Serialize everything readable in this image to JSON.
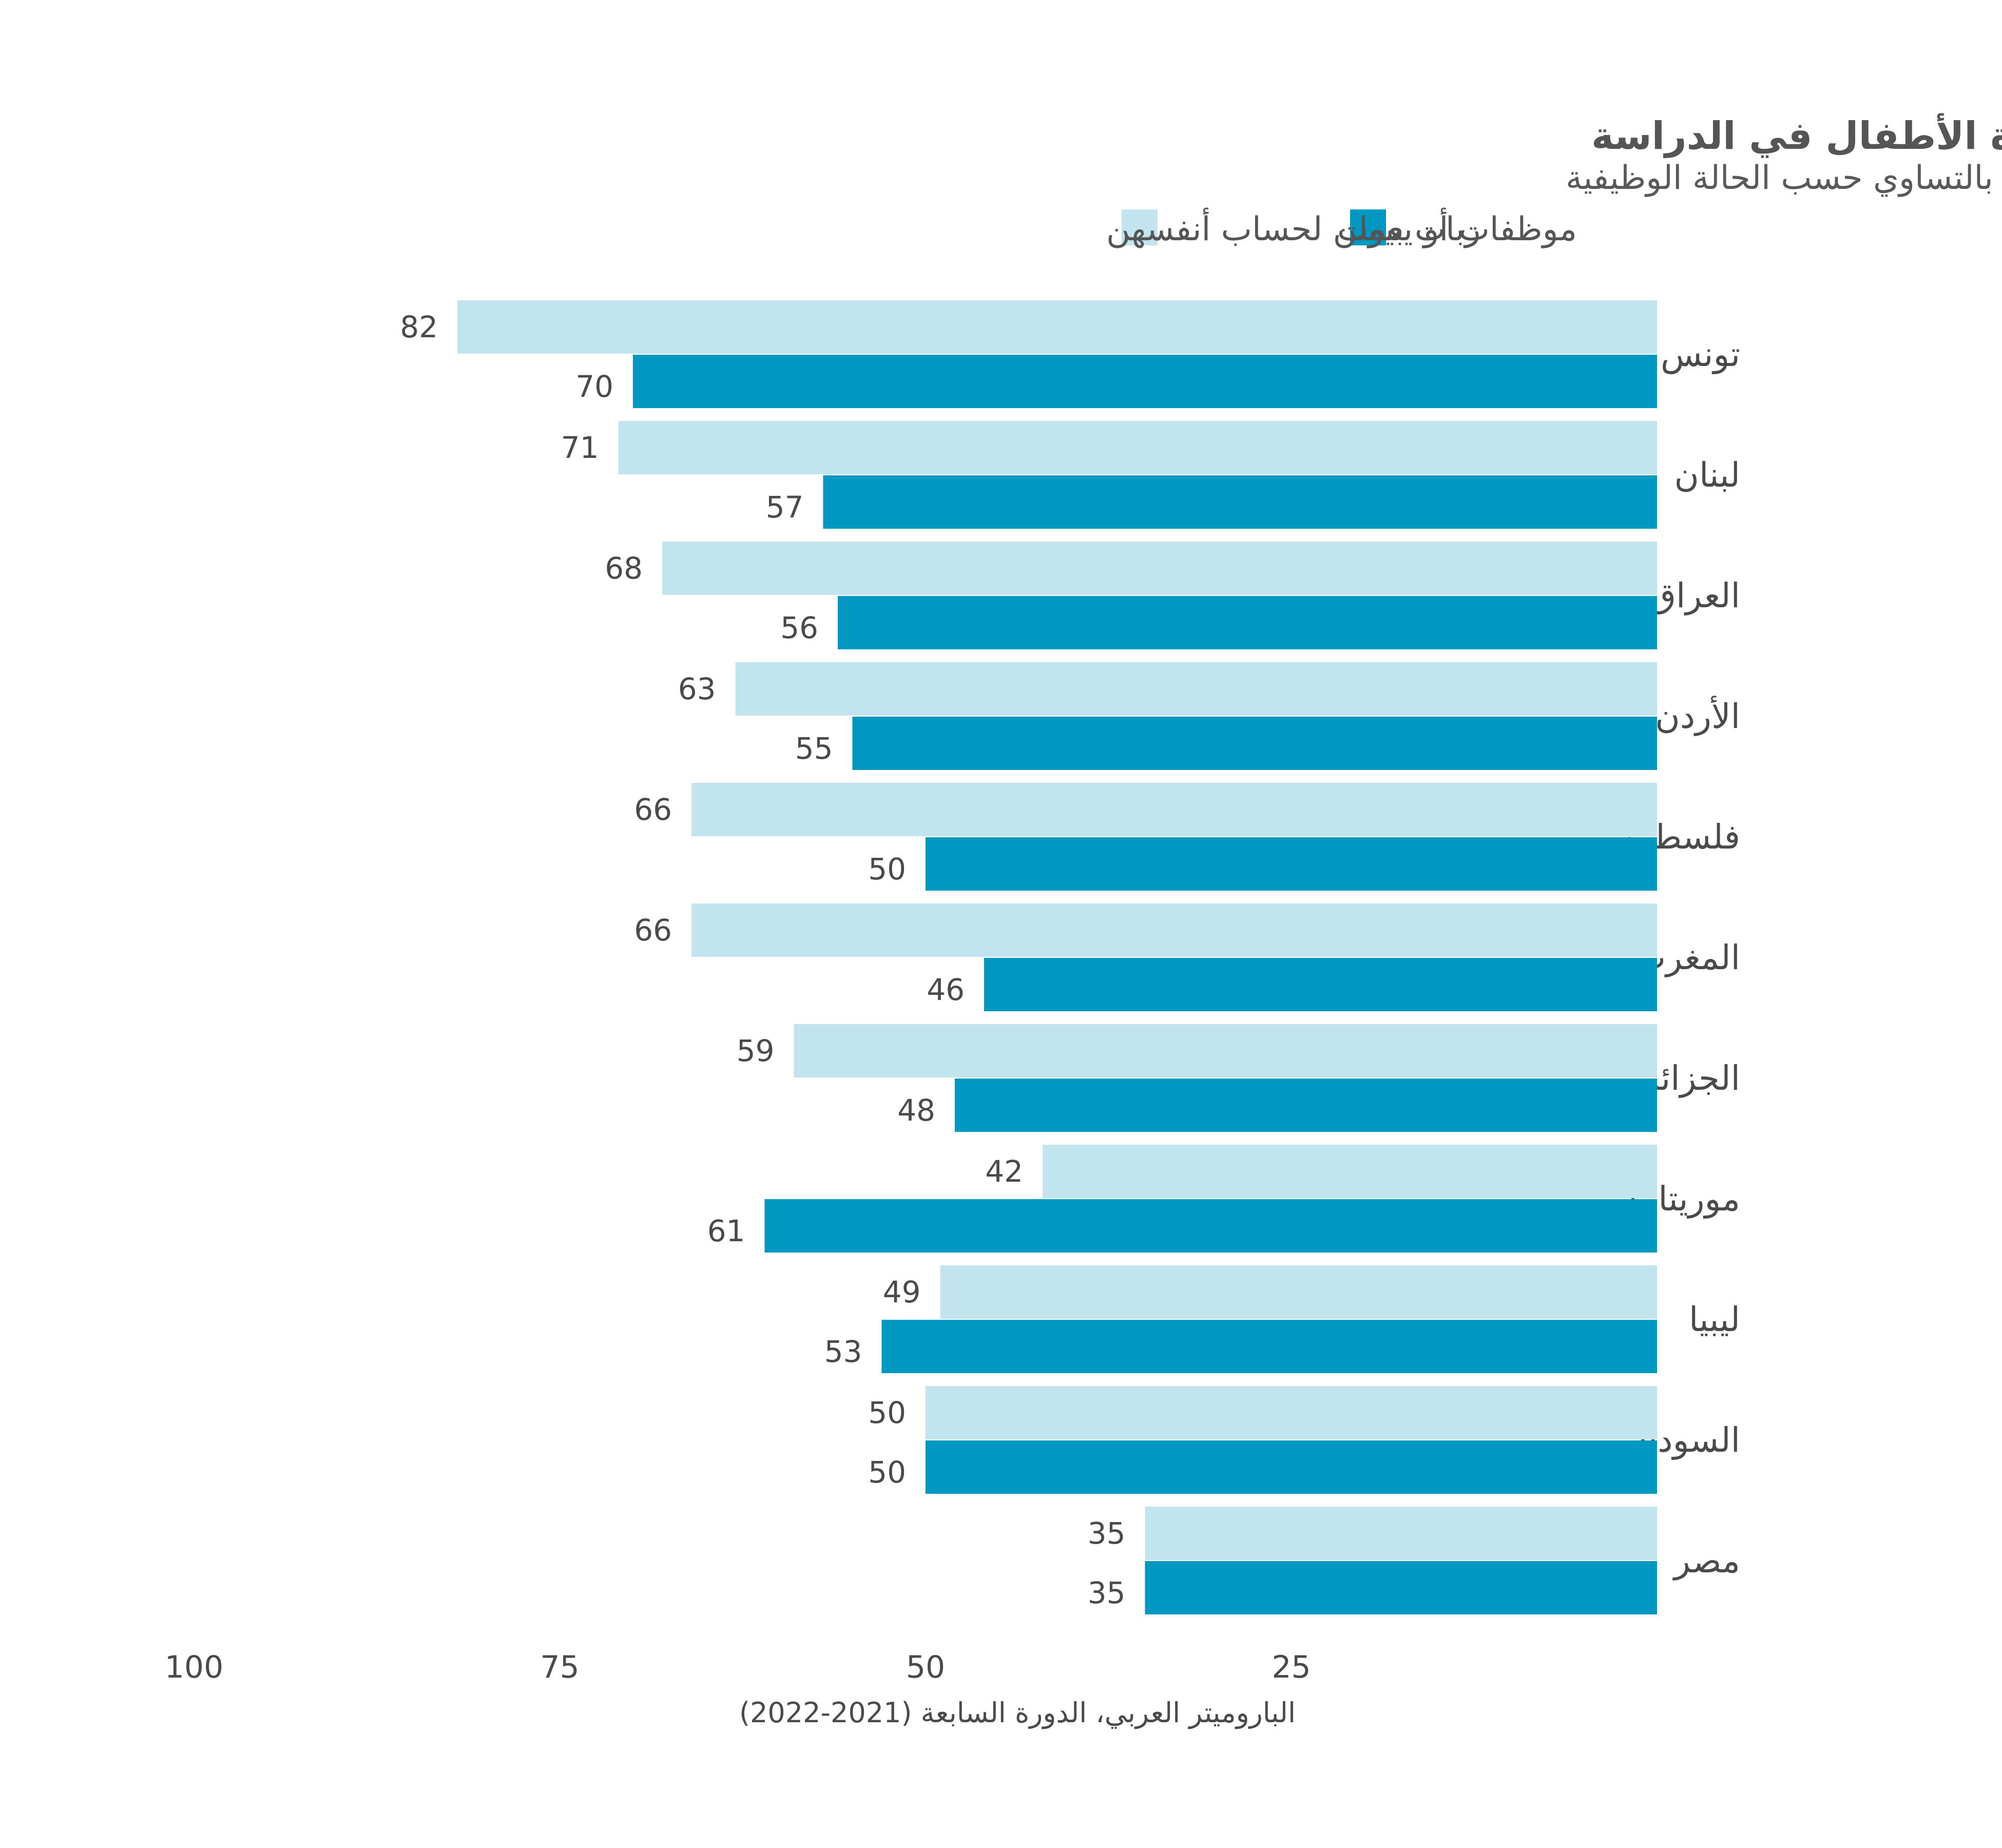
{
  "chart_data": {
    "type": "bar",
    "orientation": "horizontal",
    "direction": "rtl",
    "title": "الشخص المسؤول داخل الأسرة عن مساعدة الأطفال في الدراسة",
    "subtitle": "% من النساء يقلن إن الأم والأب مسؤولان بالتساوي حسب الحالة الوظيفية",
    "categories": [
      "تونس",
      "لبنان",
      "العراق",
      "الأردن",
      "فلسطين",
      "المغرب",
      "الجزائر",
      "موريتانيا",
      "ليبيا",
      "السودان",
      "مصر"
    ],
    "series": [
      {
        "name": "موظفات أو يعملن لحساب أنفسهن",
        "color": "#c1e4ee",
        "values": [
          82,
          71,
          68,
          63,
          66,
          66,
          59,
          42,
          49,
          50,
          35
        ]
      },
      {
        "name": "ربات بيوت",
        "color": "#0097c1",
        "values": [
          70,
          57,
          56,
          55,
          50,
          46,
          48,
          61,
          53,
          50,
          35
        ]
      }
    ],
    "xlim": [
      0,
      100
    ],
    "xticks": [
      100,
      75,
      50,
      25
    ],
    "grid": false,
    "legend_position": "top",
    "source": "الباروميتر العربي، الدورة السابعة (2021-2022)"
  }
}
